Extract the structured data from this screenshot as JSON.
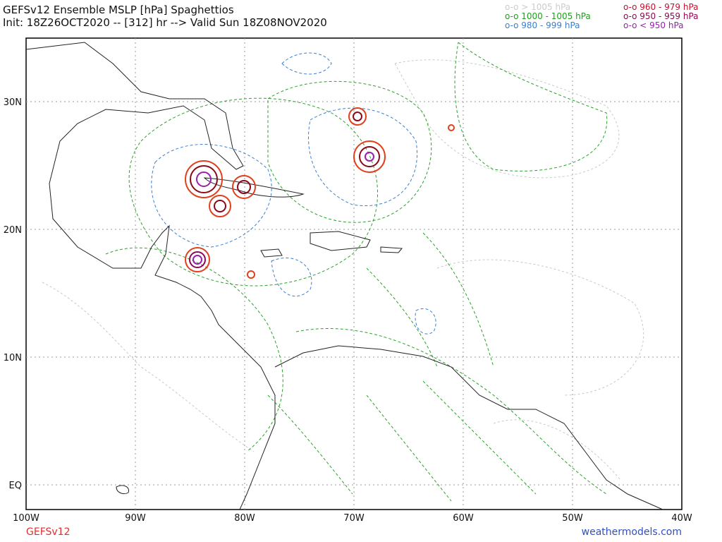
{
  "header": {
    "title": "GEFSv12 Ensemble MSLP [hPa] Spaghettios",
    "init": "Init: 18Z26OCT2020 -- [312] hr --> Valid Sun 18Z08NOV2020"
  },
  "legend": [
    {
      "text": "o-o > 1005 hPa",
      "color": "#cccccc"
    },
    {
      "text": "o-o 1000 - 1005 hPa",
      "color": "#1e9e1e"
    },
    {
      "text": "o-o 980 - 999 hPa",
      "color": "#3a7fd0"
    },
    {
      "text": "o-o 960 - 979 hPa",
      "color": "#c8102e"
    },
    {
      "text": "o-o 950 - 959 hPa",
      "color": "#8b0a50"
    },
    {
      "text": "o-o < 950 hPa",
      "color": "#9b1fb0"
    }
  ],
  "axes": {
    "lon_labels": [
      "100W",
      "90W",
      "80W",
      "70W",
      "60W",
      "50W",
      "40W"
    ],
    "lat_labels": [
      "30N",
      "20N",
      "10N",
      "EQ"
    ]
  },
  "footer": {
    "model": "GEFSv12",
    "site": "weathermodels.com"
  }
}
